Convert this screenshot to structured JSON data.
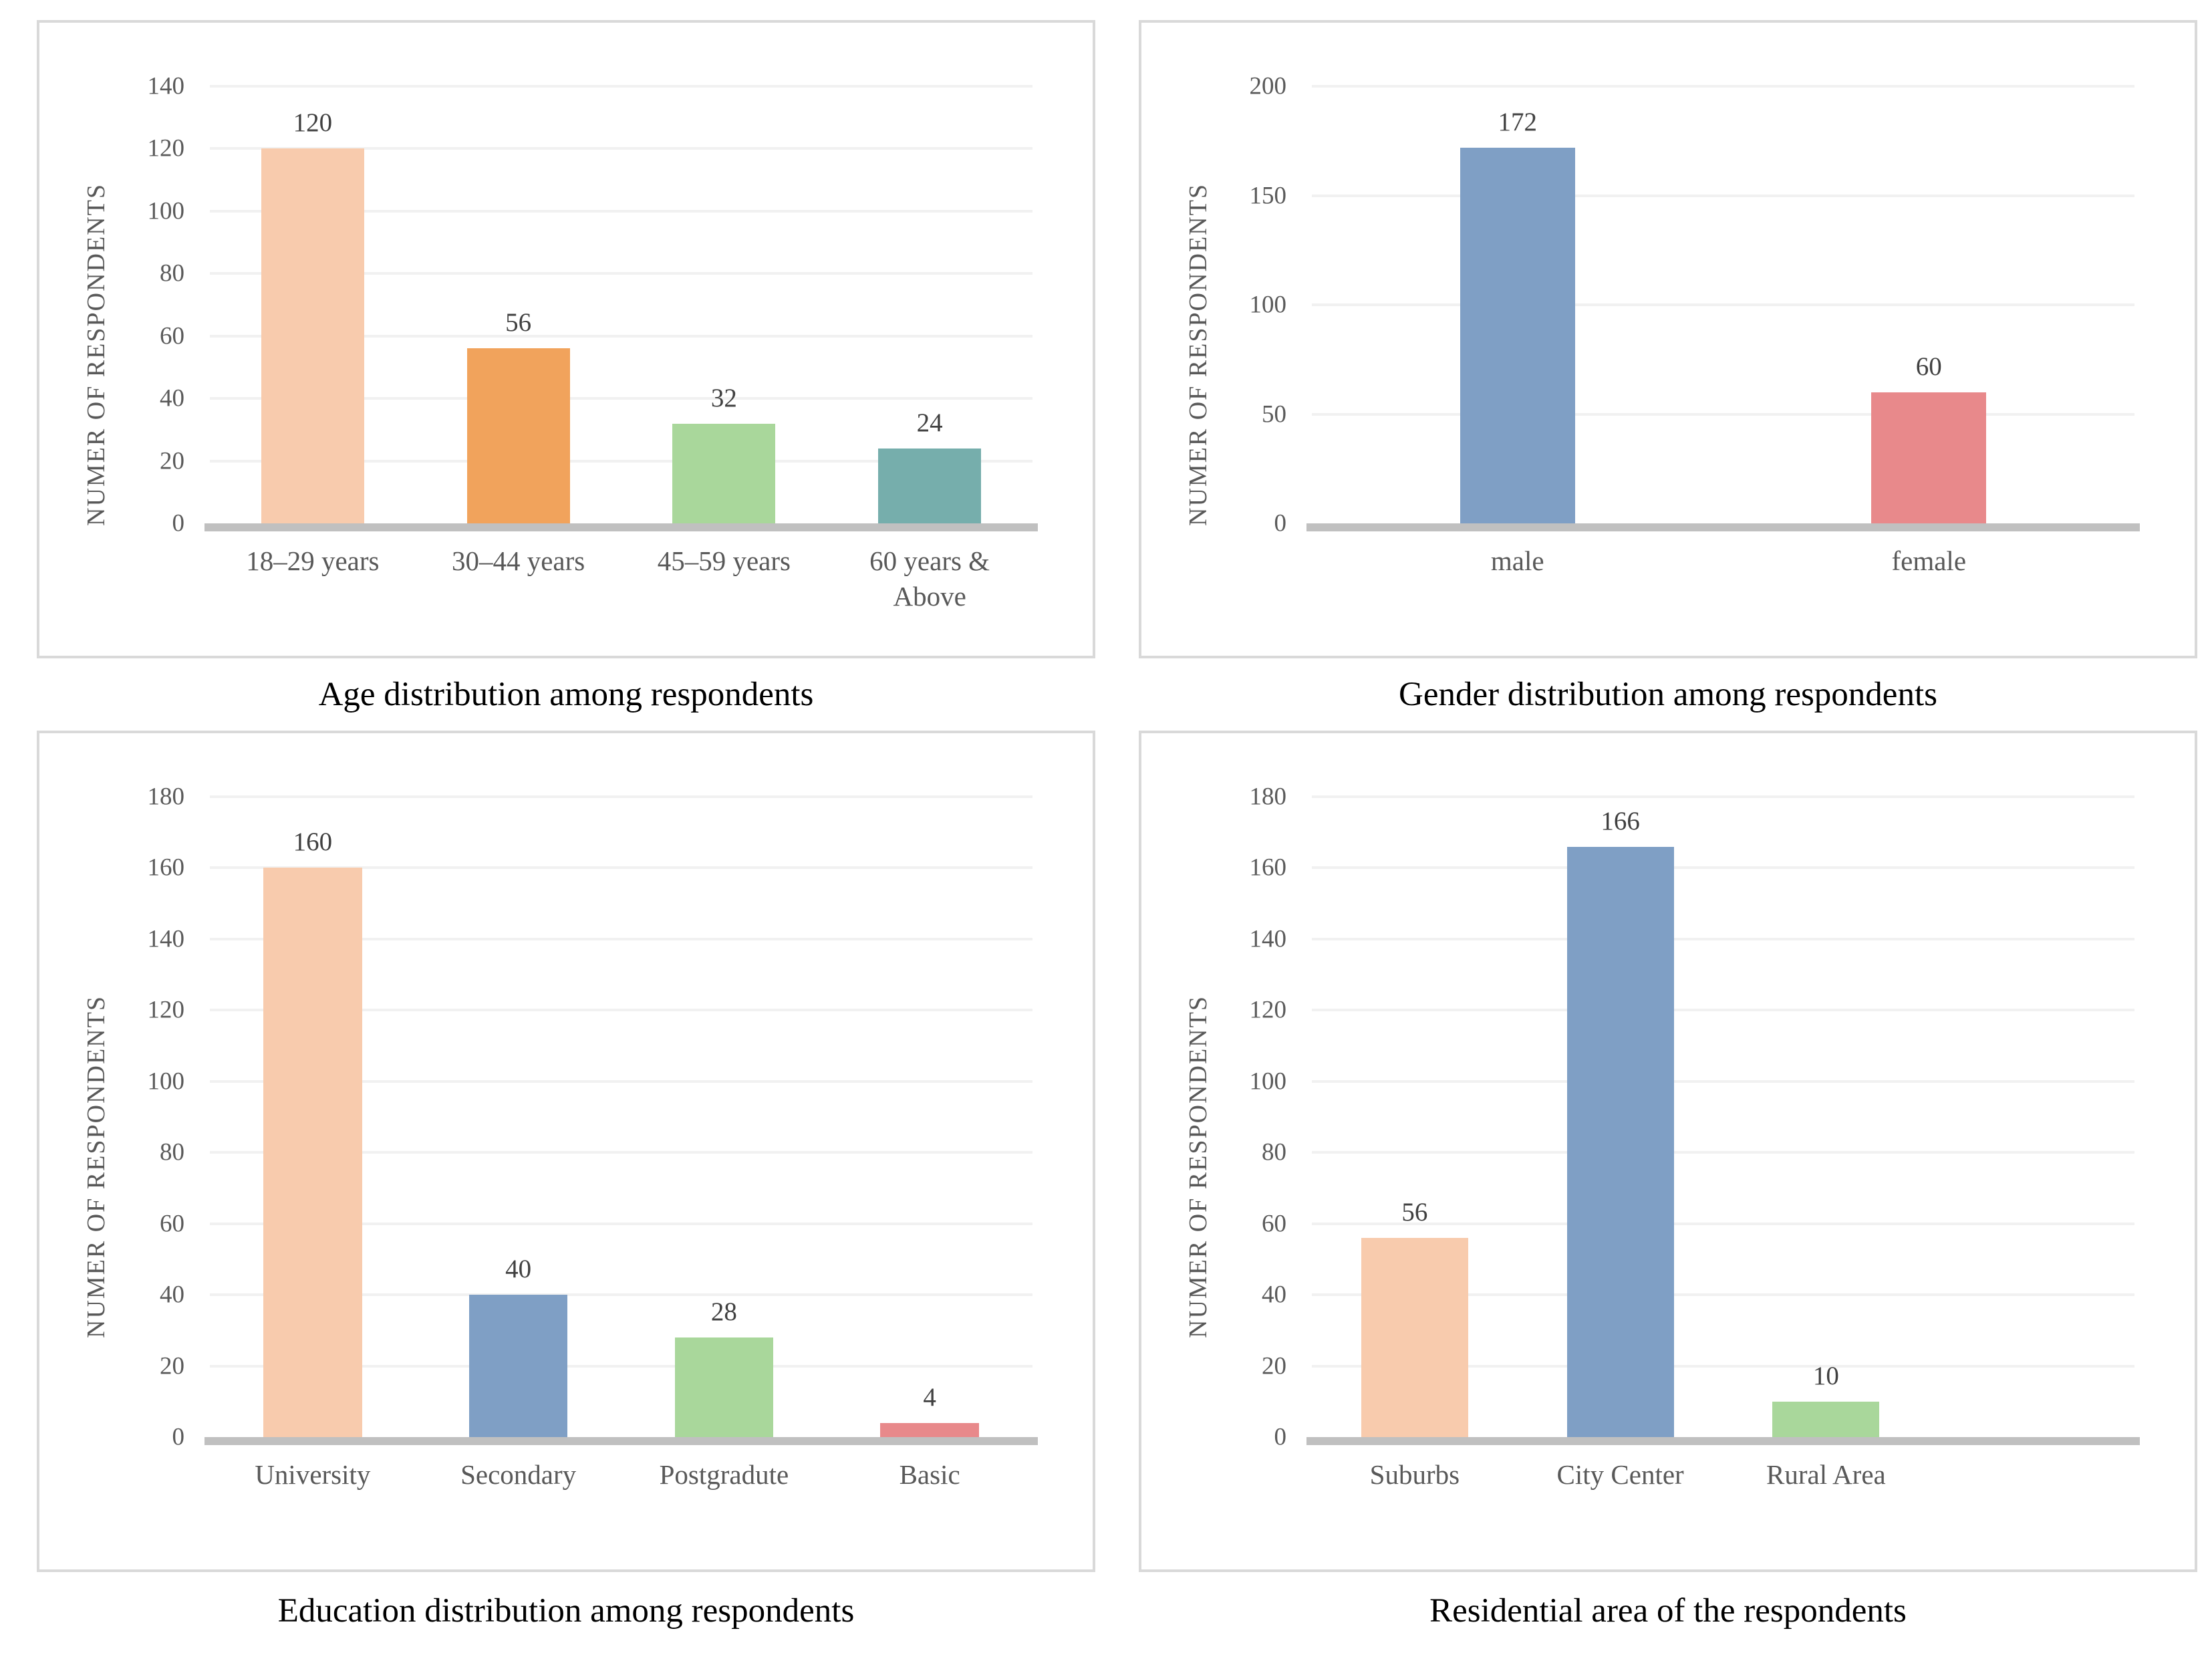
{
  "figure": {
    "background": "#ffffff",
    "panel_border_color": "#d9d9d9",
    "grid_color": "#f1f1f1",
    "baseline_color": "#c0c0c0",
    "tick_color": "#595959",
    "category_color": "#595959",
    "data_label_color": "#404040",
    "caption_color": "#000000"
  },
  "chart_data": [
    {
      "type": "bar",
      "caption": "Age distribution among respondents",
      "ylabel": "NUMER OF RESPONDENTS",
      "xlabel": "",
      "categories": [
        "18–29 years",
        "30–44 years",
        "45–59 years",
        "60 years & Above"
      ],
      "values": [
        120,
        56,
        32,
        24
      ],
      "data_labels": [
        "120",
        "56",
        "32",
        "24"
      ],
      "bar_colors": [
        "#F8CBAD",
        "#F1A35C",
        "#A9D79B",
        "#76AEAC"
      ],
      "ylim": [
        0,
        140
      ],
      "ytick_step": 20,
      "yticks": [
        0,
        20,
        40,
        60,
        80,
        100,
        120,
        140
      ],
      "grid": true,
      "legend": false,
      "bar_width_pct": 50
    },
    {
      "type": "bar",
      "caption": "Gender distribution among respondents",
      "ylabel": "NUMER OF RESPONDENTS",
      "xlabel": "",
      "categories": [
        "male",
        "female"
      ],
      "values": [
        172,
        60
      ],
      "data_labels": [
        "172",
        "60"
      ],
      "bar_colors": [
        "#7F9FC5",
        "#E8898B"
      ],
      "ylim": [
        0,
        200
      ],
      "ytick_step": 50,
      "yticks": [
        0,
        50,
        100,
        150,
        200
      ],
      "grid": true,
      "legend": false,
      "bar_width_pct": 28
    },
    {
      "type": "bar",
      "caption": "Education distribution among respondents",
      "ylabel": "NUMER OF RESPONDENTS",
      "xlabel": "",
      "categories": [
        "University",
        "Secondary",
        "Postgradute",
        "Basic"
      ],
      "values": [
        160,
        40,
        28,
        4
      ],
      "data_labels": [
        "160",
        "40",
        "28",
        "4"
      ],
      "bar_colors": [
        "#F8CBAD",
        "#7F9FC5",
        "#A9D79B",
        "#E8898B"
      ],
      "ylim": [
        0,
        180
      ],
      "ytick_step": 20,
      "yticks": [
        0,
        20,
        40,
        60,
        80,
        100,
        120,
        140,
        160,
        180
      ],
      "grid": true,
      "legend": false,
      "bar_width_pct": 48
    },
    {
      "type": "bar",
      "caption": "Residential area of the respondents",
      "ylabel": "NUMER OF RESPONDENTS",
      "xlabel": "",
      "categories": [
        "Suburbs",
        "City Center",
        "Rural Area",
        ""
      ],
      "values": [
        56,
        166,
        10,
        null
      ],
      "data_labels": [
        "56",
        "166",
        "10",
        ""
      ],
      "bar_colors": [
        "#F8CBAD",
        "#7F9FC5",
        "#A9D79B",
        null
      ],
      "ylim": [
        0,
        180
      ],
      "ytick_step": 20,
      "yticks": [
        0,
        20,
        40,
        60,
        80,
        100,
        120,
        140,
        160,
        180
      ],
      "grid": true,
      "legend": false,
      "bar_width_pct": 52
    }
  ]
}
